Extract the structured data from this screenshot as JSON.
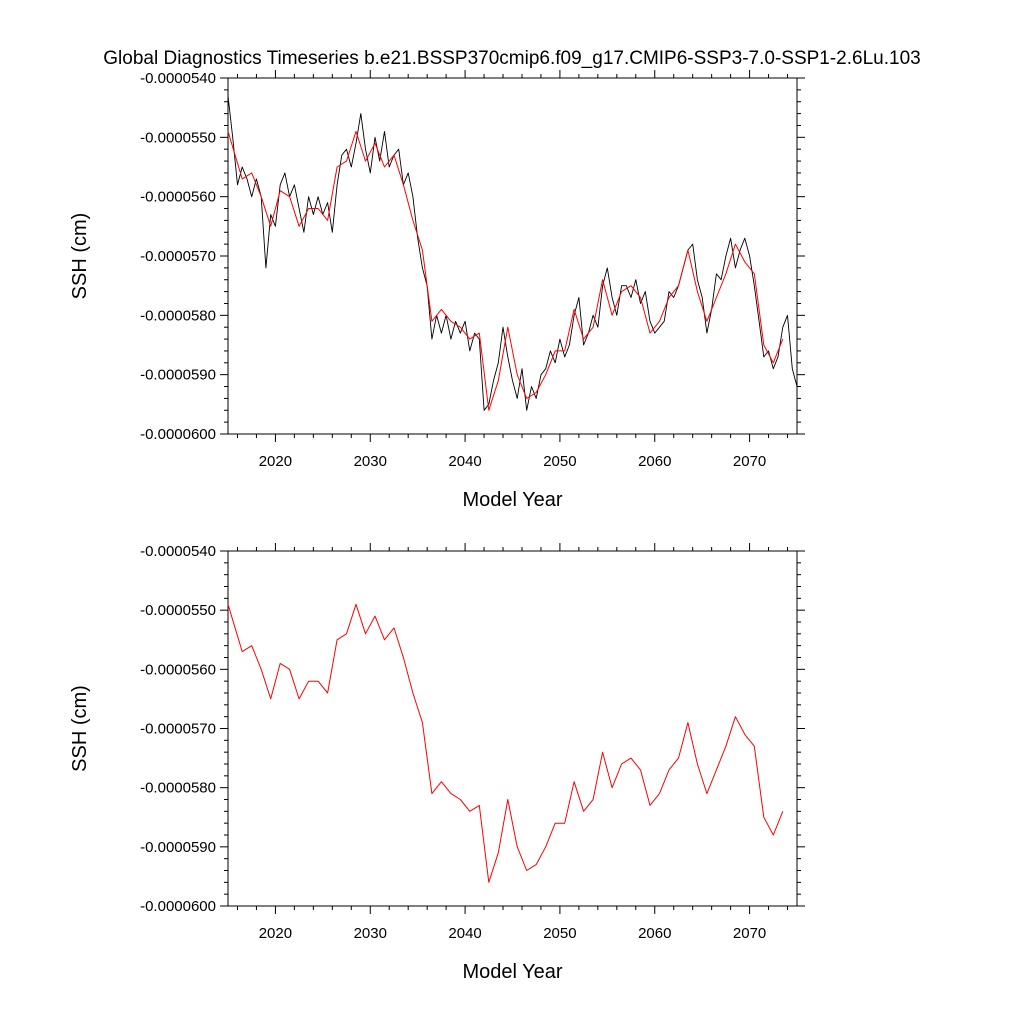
{
  "figure_title": "Global Diagnostics Timeseries b.e21.BSSP370cmip6.f09_g17.CMIP6-SSP3-7.0-SSP1-2.6Lu.103",
  "colors": {
    "monthly": "#000000",
    "annual": "#ff0000",
    "axes": "#000000"
  },
  "chart_data": [
    {
      "type": "line",
      "ylabel": "SSH (cm)",
      "xlabel": "Model Year",
      "xlim": [
        2015,
        2075
      ],
      "ylim": [
        -6e-05,
        -5.4e-05
      ],
      "xticks": [
        2020,
        2030,
        2040,
        2050,
        2060,
        2070
      ],
      "xtick_labels": [
        "2020",
        "2030",
        "2040",
        "2050",
        "2060",
        "2070"
      ],
      "yticks": [
        -5.4e-05,
        -5.5e-05,
        -5.6e-05,
        -5.7e-05,
        -5.8e-05,
        -5.9e-05,
        -6e-05
      ],
      "ytick_labels": [
        "-0.0000540",
        "-0.0000550",
        "-0.0000560",
        "-0.0000570",
        "-0.0000580",
        "-0.0000590",
        "-0.0000600"
      ],
      "series": [
        {
          "name": "monthly",
          "color": "#000000",
          "x": [
            2015.0,
            2015.5,
            2016.0,
            2016.5,
            2017.0,
            2017.5,
            2018.0,
            2018.5,
            2019.0,
            2019.5,
            2020.0,
            2020.5,
            2021.0,
            2021.5,
            2022.0,
            2022.5,
            2023.0,
            2023.5,
            2024.0,
            2024.5,
            2025.0,
            2025.5,
            2026.0,
            2026.5,
            2027.0,
            2027.5,
            2028.0,
            2028.5,
            2029.0,
            2029.5,
            2030.0,
            2030.5,
            2031.0,
            2031.5,
            2032.0,
            2032.5,
            2033.0,
            2033.5,
            2034.0,
            2034.5,
            2035.0,
            2035.5,
            2036.0,
            2036.5,
            2037.0,
            2037.5,
            2038.0,
            2038.5,
            2039.0,
            2039.5,
            2040.0,
            2040.5,
            2041.0,
            2041.5,
            2042.0,
            2042.5,
            2043.0,
            2043.5,
            2044.0,
            2044.5,
            2045.0,
            2045.5,
            2046.0,
            2046.5,
            2047.0,
            2047.5,
            2048.0,
            2048.5,
            2049.0,
            2049.5,
            2050.0,
            2050.5,
            2051.0,
            2051.5,
            2052.0,
            2052.5,
            2053.0,
            2053.5,
            2054.0,
            2054.5,
            2055.0,
            2055.5,
            2056.0,
            2056.5,
            2057.0,
            2057.5,
            2058.0,
            2058.5,
            2059.0,
            2059.5,
            2060.0,
            2060.5,
            2061.0,
            2061.5,
            2062.0,
            2062.5,
            2063.0,
            2063.5,
            2064.0,
            2064.5,
            2065.0,
            2065.5,
            2066.0,
            2066.5,
            2067.0,
            2067.5,
            2068.0,
            2068.5,
            2069.0,
            2069.5,
            2070.0,
            2070.5,
            2071.0,
            2071.5,
            2072.0,
            2072.5,
            2073.0,
            2073.5,
            2074.0,
            2074.5,
            2075.0
          ],
          "y": [
            -5.43e-05,
            -5.5e-05,
            -5.58e-05,
            -5.55e-05,
            -5.57e-05,
            -5.6e-05,
            -5.57e-05,
            -5.6e-05,
            -5.72e-05,
            -5.63e-05,
            -5.65e-05,
            -5.58e-05,
            -5.56e-05,
            -5.6e-05,
            -5.58e-05,
            -5.62e-05,
            -5.66e-05,
            -5.6e-05,
            -5.63e-05,
            -5.6e-05,
            -5.63e-05,
            -5.61e-05,
            -5.66e-05,
            -5.58e-05,
            -5.53e-05,
            -5.52e-05,
            -5.55e-05,
            -5.51e-05,
            -5.46e-05,
            -5.52e-05,
            -5.56e-05,
            -5.5e-05,
            -5.54e-05,
            -5.49e-05,
            -5.55e-05,
            -5.53e-05,
            -5.52e-05,
            -5.58e-05,
            -5.56e-05,
            -5.6e-05,
            -5.67e-05,
            -5.72e-05,
            -5.75e-05,
            -5.84e-05,
            -5.8e-05,
            -5.83e-05,
            -5.8e-05,
            -5.84e-05,
            -5.81e-05,
            -5.83e-05,
            -5.81e-05,
            -5.86e-05,
            -5.83e-05,
            -5.84e-05,
            -5.96e-05,
            -5.95e-05,
            -5.91e-05,
            -5.88e-05,
            -5.82e-05,
            -5.87e-05,
            -5.91e-05,
            -5.94e-05,
            -5.89e-05,
            -5.96e-05,
            -5.92e-05,
            -5.94e-05,
            -5.9e-05,
            -5.89e-05,
            -5.86e-05,
            -5.88e-05,
            -5.84e-05,
            -5.87e-05,
            -5.85e-05,
            -5.8e-05,
            -5.77e-05,
            -5.85e-05,
            -5.83e-05,
            -5.8e-05,
            -5.82e-05,
            -5.75e-05,
            -5.72e-05,
            -5.77e-05,
            -5.8e-05,
            -5.75e-05,
            -5.75e-05,
            -5.77e-05,
            -5.74e-05,
            -5.78e-05,
            -5.76e-05,
            -5.81e-05,
            -5.83e-05,
            -5.82e-05,
            -5.81e-05,
            -5.76e-05,
            -5.77e-05,
            -5.75e-05,
            -5.72e-05,
            -5.69e-05,
            -5.68e-05,
            -5.74e-05,
            -5.77e-05,
            -5.83e-05,
            -5.79e-05,
            -5.73e-05,
            -5.74e-05,
            -5.7e-05,
            -5.67e-05,
            -5.72e-05,
            -5.69e-05,
            -5.67e-05,
            -5.7e-05,
            -5.75e-05,
            -5.81e-05,
            -5.87e-05,
            -5.86e-05,
            -5.89e-05,
            -5.87e-05,
            -5.82e-05,
            -5.8e-05,
            -5.89e-05,
            -5.92e-05
          ]
        },
        {
          "name": "annual",
          "color": "#ff0000",
          "x": [
            2015.0,
            2016.5,
            2017.5,
            2018.5,
            2019.5,
            2020.5,
            2021.5,
            2022.5,
            2023.5,
            2024.5,
            2025.5,
            2026.5,
            2027.5,
            2028.5,
            2029.5,
            2030.5,
            2031.5,
            2032.5,
            2033.5,
            2034.5,
            2035.5,
            2036.5,
            2037.5,
            2038.5,
            2039.5,
            2040.5,
            2041.5,
            2042.5,
            2043.5,
            2044.5,
            2045.5,
            2046.5,
            2047.5,
            2048.5,
            2049.5,
            2050.5,
            2051.5,
            2052.5,
            2053.5,
            2054.5,
            2055.5,
            2056.5,
            2057.5,
            2058.5,
            2059.5,
            2060.5,
            2061.5,
            2062.5,
            2063.5,
            2064.5,
            2065.5,
            2066.5,
            2067.5,
            2068.5,
            2069.5,
            2070.5,
            2071.5,
            2072.5,
            2073.5
          ],
          "y": [
            -5.49e-05,
            -5.57e-05,
            -5.56e-05,
            -5.6e-05,
            -5.65e-05,
            -5.59e-05,
            -5.6e-05,
            -5.65e-05,
            -5.62e-05,
            -5.62e-05,
            -5.64e-05,
            -5.55e-05,
            -5.54e-05,
            -5.49e-05,
            -5.54e-05,
            -5.51e-05,
            -5.55e-05,
            -5.53e-05,
            -5.58e-05,
            -5.64e-05,
            -5.69e-05,
            -5.81e-05,
            -5.79e-05,
            -5.81e-05,
            -5.82e-05,
            -5.84e-05,
            -5.83e-05,
            -5.96e-05,
            -5.91e-05,
            -5.82e-05,
            -5.9e-05,
            -5.94e-05,
            -5.93e-05,
            -5.9e-05,
            -5.86e-05,
            -5.86e-05,
            -5.79e-05,
            -5.84e-05,
            -5.82e-05,
            -5.74e-05,
            -5.8e-05,
            -5.76e-05,
            -5.75e-05,
            -5.77e-05,
            -5.83e-05,
            -5.81e-05,
            -5.77e-05,
            -5.75e-05,
            -5.69e-05,
            -5.76e-05,
            -5.81e-05,
            -5.77e-05,
            -5.73e-05,
            -5.68e-05,
            -5.71e-05,
            -5.73e-05,
            -5.85e-05,
            -5.88e-05,
            -5.84e-05
          ]
        }
      ]
    },
    {
      "type": "line",
      "ylabel": "SSH (cm)",
      "xlabel": "Model Year",
      "xlim": [
        2015,
        2075
      ],
      "ylim": [
        -6e-05,
        -5.4e-05
      ],
      "xticks": [
        2020,
        2030,
        2040,
        2050,
        2060,
        2070
      ],
      "xtick_labels": [
        "2020",
        "2030",
        "2040",
        "2050",
        "2060",
        "2070"
      ],
      "yticks": [
        -5.4e-05,
        -5.5e-05,
        -5.6e-05,
        -5.7e-05,
        -5.8e-05,
        -5.9e-05,
        -6e-05
      ],
      "ytick_labels": [
        "-0.0000540",
        "-0.0000550",
        "-0.0000560",
        "-0.0000570",
        "-0.0000580",
        "-0.0000590",
        "-0.0000600"
      ],
      "series": [
        {
          "name": "annual",
          "color": "#ff0000",
          "x": [
            2015.0,
            2016.5,
            2017.5,
            2018.5,
            2019.5,
            2020.5,
            2021.5,
            2022.5,
            2023.5,
            2024.5,
            2025.5,
            2026.5,
            2027.5,
            2028.5,
            2029.5,
            2030.5,
            2031.5,
            2032.5,
            2033.5,
            2034.5,
            2035.5,
            2036.5,
            2037.5,
            2038.5,
            2039.5,
            2040.5,
            2041.5,
            2042.5,
            2043.5,
            2044.5,
            2045.5,
            2046.5,
            2047.5,
            2048.5,
            2049.5,
            2050.5,
            2051.5,
            2052.5,
            2053.5,
            2054.5,
            2055.5,
            2056.5,
            2057.5,
            2058.5,
            2059.5,
            2060.5,
            2061.5,
            2062.5,
            2063.5,
            2064.5,
            2065.5,
            2066.5,
            2067.5,
            2068.5,
            2069.5,
            2070.5,
            2071.5,
            2072.5,
            2073.5
          ],
          "y": [
            -5.49e-05,
            -5.57e-05,
            -5.56e-05,
            -5.6e-05,
            -5.65e-05,
            -5.59e-05,
            -5.6e-05,
            -5.65e-05,
            -5.62e-05,
            -5.62e-05,
            -5.64e-05,
            -5.55e-05,
            -5.54e-05,
            -5.49e-05,
            -5.54e-05,
            -5.51e-05,
            -5.55e-05,
            -5.53e-05,
            -5.58e-05,
            -5.64e-05,
            -5.69e-05,
            -5.81e-05,
            -5.79e-05,
            -5.81e-05,
            -5.82e-05,
            -5.84e-05,
            -5.83e-05,
            -5.96e-05,
            -5.91e-05,
            -5.82e-05,
            -5.9e-05,
            -5.94e-05,
            -5.93e-05,
            -5.9e-05,
            -5.86e-05,
            -5.86e-05,
            -5.79e-05,
            -5.84e-05,
            -5.82e-05,
            -5.74e-05,
            -5.8e-05,
            -5.76e-05,
            -5.75e-05,
            -5.77e-05,
            -5.83e-05,
            -5.81e-05,
            -5.77e-05,
            -5.75e-05,
            -5.69e-05,
            -5.76e-05,
            -5.81e-05,
            -5.77e-05,
            -5.73e-05,
            -5.68e-05,
            -5.71e-05,
            -5.73e-05,
            -5.85e-05,
            -5.88e-05,
            -5.84e-05
          ]
        }
      ]
    }
  ]
}
